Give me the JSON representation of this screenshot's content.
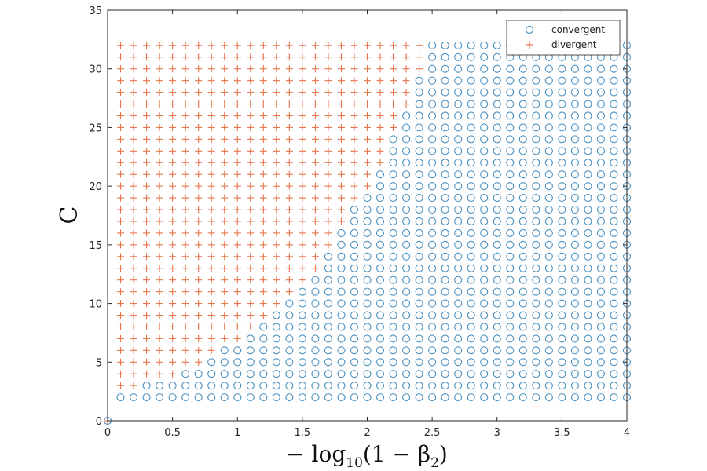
{
  "chart_data": {
    "type": "scatter",
    "title": "",
    "xlabel": {
      "prefix": "− log",
      "subscript": "10",
      "middle": "(1 − β",
      "subscript2": "2",
      "suffix": ")"
    },
    "ylabel": "C",
    "xlim": [
      0,
      4
    ],
    "ylim": [
      0,
      35
    ],
    "xticks": [
      "0",
      "0.5",
      "1",
      "1.5",
      "2",
      "2.5",
      "3",
      "3.5",
      "4"
    ],
    "yticks": [
      "0",
      "5",
      "10",
      "15",
      "20",
      "25",
      "30",
      "35"
    ],
    "grid": false,
    "legend_position": "top-right",
    "colors": {
      "convergent": "#4a90c0",
      "divergent": "#e8734a"
    },
    "grid_sampling": {
      "x_start": 0.1,
      "x_step": 0.1,
      "x_count": 40,
      "y_start": 2,
      "y_step": 1,
      "y_count": 31
    },
    "boundary": [
      {
        "C": 2,
        "x_threshold": 0.0
      },
      {
        "C": 3,
        "x_threshold": 0.25
      },
      {
        "C": 4,
        "x_threshold": 0.55
      },
      {
        "C": 5,
        "x_threshold": 0.75
      },
      {
        "C": 6,
        "x_threshold": 0.85
      },
      {
        "C": 7,
        "x_threshold": 1.05
      },
      {
        "C": 8,
        "x_threshold": 1.15
      },
      {
        "C": 9,
        "x_threshold": 1.25
      },
      {
        "C": 10,
        "x_threshold": 1.35
      },
      {
        "C": 11,
        "x_threshold": 1.45
      },
      {
        "C": 12,
        "x_threshold": 1.55
      },
      {
        "C": 13,
        "x_threshold": 1.65
      },
      {
        "C": 14,
        "x_threshold": 1.65
      },
      {
        "C": 15,
        "x_threshold": 1.75
      },
      {
        "C": 16,
        "x_threshold": 1.75
      },
      {
        "C": 17,
        "x_threshold": 1.85
      },
      {
        "C": 18,
        "x_threshold": 1.85
      },
      {
        "C": 19,
        "x_threshold": 1.95
      },
      {
        "C": 20,
        "x_threshold": 2.05
      },
      {
        "C": 21,
        "x_threshold": 2.05
      },
      {
        "C": 22,
        "x_threshold": 2.15
      },
      {
        "C": 23,
        "x_threshold": 2.15
      },
      {
        "C": 24,
        "x_threshold": 2.15
      },
      {
        "C": 25,
        "x_threshold": 2.25
      },
      {
        "C": 26,
        "x_threshold": 2.25
      },
      {
        "C": 27,
        "x_threshold": 2.35
      },
      {
        "C": 28,
        "x_threshold": 2.35
      },
      {
        "C": 29,
        "x_threshold": 2.35
      },
      {
        "C": 30,
        "x_threshold": 2.45
      },
      {
        "C": 31,
        "x_threshold": 2.45
      },
      {
        "C": 32,
        "x_threshold": 2.45
      }
    ],
    "extra_points": [
      {
        "series": "convergent",
        "x": 0,
        "y": 0
      },
      {
        "series": "divergent",
        "x": 0,
        "y": 0
      }
    ],
    "series": [
      {
        "name": "convergent",
        "marker": "circle"
      },
      {
        "name": "divergent",
        "marker": "plus"
      }
    ]
  }
}
